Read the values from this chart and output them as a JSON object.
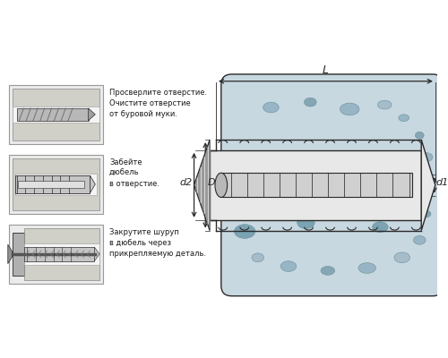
{
  "bg_color": "#ffffff",
  "concrete_color": "#c8d8e0",
  "anchor_body_color": "#e8e8e8",
  "anchor_line_color": "#2a2a2a",
  "dim_color": "#2a2a2a",
  "text_color": "#1a1a1a",
  "box_face": "#ebebeb",
  "box_edge": "#999999",
  "wall_face": "#d8d8d8",
  "hole_face": "#f5f5f5",
  "label_L": "L",
  "label_d1": "d1",
  "label_d2": "d2",
  "label_D": "D",
  "step1_text": "Просверлите отверстие.\nОчистите отверстие\nот буровой муки.",
  "step2_text": "Забейте\nдюбель\nв отверстие.",
  "step3_text": "Закрутите шуруп\nв дюбель через\nприкрепляемую деталь.",
  "stones": [
    [
      310,
      118,
      9,
      6,
      "#8fafc0"
    ],
    [
      355,
      112,
      7,
      5,
      "#7a9eab"
    ],
    [
      400,
      120,
      11,
      7,
      "#8fafc0"
    ],
    [
      440,
      115,
      8,
      5,
      "#a0b8c5"
    ],
    [
      462,
      130,
      6,
      4,
      "#8fafc0"
    ],
    [
      480,
      150,
      5,
      4,
      "#7a9eab"
    ],
    [
      488,
      175,
      7,
      5,
      "#8fafc0"
    ],
    [
      487,
      240,
      6,
      4,
      "#7a9eab"
    ],
    [
      480,
      270,
      7,
      5,
      "#8fafc0"
    ],
    [
      460,
      290,
      9,
      6,
      "#a0b8c5"
    ],
    [
      420,
      302,
      10,
      6,
      "#8fafc0"
    ],
    [
      375,
      305,
      8,
      5,
      "#7a9eab"
    ],
    [
      330,
      300,
      9,
      6,
      "#8fafc0"
    ],
    [
      295,
      290,
      7,
      5,
      "#a0b8c5"
    ],
    [
      280,
      260,
      12,
      8,
      "#6e9aaa"
    ],
    [
      350,
      250,
      10,
      7,
      "#6e9aaa"
    ],
    [
      435,
      255,
      9,
      6,
      "#6e9aaa"
    ],
    [
      460,
      210,
      7,
      5,
      "#8fafc0"
    ]
  ]
}
